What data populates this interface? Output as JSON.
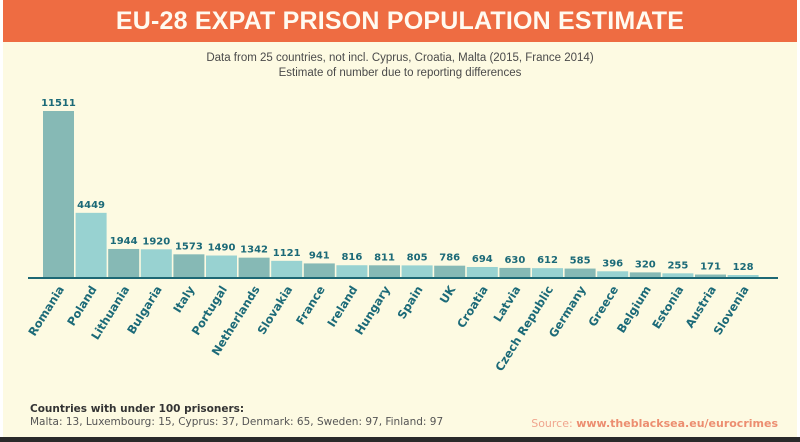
{
  "header": {
    "title": "EU-28 EXPAT PRISON POPULATION ESTIMATE",
    "subtitle_line1": "Data from 25 countries, not incl. Cyprus, Croatia, Malta (2015, France 2014)",
    "subtitle_line2": "Estimate of number due to reporting differences"
  },
  "chart_data": {
    "type": "bar",
    "title": "EU-28 EXPAT PRISON POPULATION ESTIMATE",
    "xlabel": "",
    "ylabel": "",
    "ylim": [
      0,
      11511
    ],
    "grid": false,
    "legend": "none",
    "categories": [
      "Romania",
      "Poland",
      "Lithuania",
      "Bulgaria",
      "Italy",
      "Portugal",
      "Netherlands",
      "Slovakia",
      "France",
      "Ireland",
      "Hungary",
      "Spain",
      "UK",
      "Croatia",
      "Latvia",
      "Czech Republic",
      "Germany",
      "Greece",
      "Belgium",
      "Estonia",
      "Austria",
      "Slovenia"
    ],
    "values": [
      11511,
      4449,
      1944,
      1920,
      1573,
      1490,
      1342,
      1121,
      941,
      816,
      811,
      805,
      786,
      694,
      630,
      612,
      585,
      396,
      320,
      255,
      171,
      128
    ],
    "colors": {
      "dark": "#86b9b5",
      "light": "#98d2d1",
      "label": "#1c6a78",
      "axis": "#1d6874"
    }
  },
  "footnote": {
    "title": "Countries with under 100 prisoners:",
    "text": "Malta: 13, Luxembourg: 15, Cyprus: 37, Denmark: 65, Sweden: 97, Finland: 97"
  },
  "source": {
    "prefix": "Source: ",
    "link": "www.theblacksea.eu/eurocrimes"
  }
}
